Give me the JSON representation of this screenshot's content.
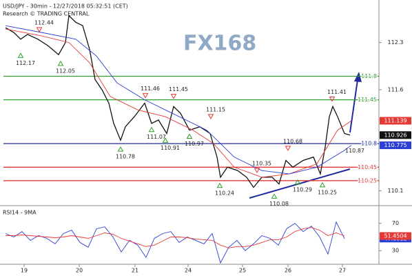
{
  "chart_data": [
    {
      "type": "line",
      "title": "USD/JPY - 30min - 12/27/2018 05:32:51 (CET)",
      "subtitle": "Research © TRADING CENTRAL",
      "watermark": "FX168",
      "xlim": [
        0,
        545
      ],
      "ylim": [
        109.9,
        112.88
      ],
      "yticks": [
        112.3,
        111.6,
        110.1
      ],
      "series": [
        {
          "color": "#111111",
          "x": [
            3,
            15,
            25,
            35,
            50,
            65,
            80,
            90,
            95,
            105,
            115,
            125,
            133,
            143,
            153,
            160,
            170,
            177,
            190,
            205,
            215,
            225,
            237,
            247,
            257,
            270,
            285,
            300,
            310,
            315,
            325,
            340,
            353,
            363,
            375,
            390,
            400,
            410,
            420,
            435,
            450,
            460,
            467,
            473,
            478,
            485,
            495,
            503
          ],
          "values": [
            112.52,
            112.45,
            112.35,
            112.42,
            112.35,
            112.25,
            112.12,
            112.3,
            112.7,
            112.6,
            112.55,
            112.2,
            111.75,
            111.6,
            111.4,
            111.1,
            110.85,
            111.05,
            111.2,
            111.4,
            111.1,
            111.15,
            110.95,
            111.35,
            111.25,
            111.0,
            111.05,
            110.95,
            110.6,
            110.3,
            110.45,
            110.4,
            110.3,
            110.15,
            110.3,
            110.3,
            110.2,
            110.55,
            110.45,
            110.55,
            110.6,
            110.35,
            110.75,
            111.2,
            111.35,
            111.2,
            110.95,
            110.926
          ]
        },
        {
          "color": "#e53935",
          "x": [
            3,
            55,
            95,
            125,
            155,
            195,
            235,
            275,
            305,
            335,
            375,
            415,
            455,
            485,
            505
          ],
          "values": [
            112.5,
            112.4,
            112.3,
            112.0,
            111.5,
            111.3,
            111.2,
            111.0,
            110.8,
            110.45,
            110.3,
            110.35,
            110.5,
            111.0,
            111.139
          ]
        },
        {
          "color": "#2b3fd6",
          "x": [
            3,
            55,
            105,
            135,
            165,
            205,
            245,
            295,
            335,
            375,
            415,
            455,
            495,
            505
          ],
          "values": [
            112.55,
            112.45,
            112.35,
            112.1,
            111.7,
            111.45,
            111.25,
            111.0,
            110.6,
            110.4,
            110.35,
            110.45,
            110.7,
            110.775
          ]
        }
      ],
      "levels": [
        {
          "value": 111.8,
          "color": "#2e9e2e"
        },
        {
          "value": 111.45,
          "color": "#2e9e2e"
        },
        {
          "value": 110.8,
          "color": "#1f2a9c"
        },
        {
          "value": 110.45,
          "color": "#e53935"
        },
        {
          "value": 110.25,
          "color": "#e53935"
        }
      ],
      "annotations": [
        {
          "x": 52,
          "value": 112.44,
          "marker": "down"
        },
        {
          "x": 25,
          "value": 112.17,
          "marker": "up"
        },
        {
          "x": 83,
          "value": 112.05,
          "marker": "up"
        },
        {
          "x": 206,
          "value": 111.46,
          "marker": "down"
        },
        {
          "x": 247,
          "value": 111.45,
          "marker": "down"
        },
        {
          "x": 215,
          "value": 111.07,
          "marker": "up"
        },
        {
          "x": 235,
          "value": 110.91,
          "marker": "up"
        },
        {
          "x": 270,
          "value": 110.97,
          "marker": "up"
        },
        {
          "x": 170,
          "value": 110.78,
          "marker": "up"
        },
        {
          "x": 301,
          "value": 111.15,
          "marker": "down"
        },
        {
          "x": 314,
          "value": 110.24,
          "marker": "up"
        },
        {
          "x": 368,
          "value": 110.35,
          "marker": "down"
        },
        {
          "x": 393,
          "value": 110.08,
          "marker": "up"
        },
        {
          "x": 427,
          "value": 110.29,
          "marker": "up"
        },
        {
          "x": 413,
          "value": 110.68,
          "marker": "down"
        },
        {
          "x": 463,
          "value": 110.25,
          "marker": "up"
        },
        {
          "x": 477,
          "value": 111.41,
          "marker": "down"
        },
        {
          "x": 503,
          "value": 110.87
        }
      ]
    },
    {
      "type": "line",
      "title": "RSI14 - 9MA",
      "xlim": [
        0,
        545
      ],
      "ylim": [
        10,
        94
      ],
      "yticks": [
        70,
        30
      ],
      "xticks": [
        {
          "value": 30,
          "label": "19"
        },
        {
          "value": 110,
          "label": "20"
        },
        {
          "value": 191,
          "label": "21"
        },
        {
          "value": 268,
          "label": "24"
        },
        {
          "value": 347,
          "label": "25"
        },
        {
          "value": 413,
          "label": "26"
        },
        {
          "value": 492,
          "label": "27"
        }
      ],
      "x": [
        3,
        15,
        27,
        39,
        51,
        63,
        75,
        87,
        99,
        111,
        123,
        135,
        147,
        159,
        171,
        183,
        195,
        207,
        219,
        231,
        243,
        255,
        267,
        279,
        291,
        303,
        315,
        327,
        339,
        351,
        363,
        375,
        387,
        399,
        411,
        423,
        435,
        447,
        459,
        471,
        483,
        495
      ],
      "series": [
        {
          "color": "#2b3fd6",
          "values": [
            55,
            50,
            58,
            45,
            52,
            48,
            40,
            55,
            60,
            42,
            35,
            62,
            65,
            50,
            28,
            45,
            38,
            20,
            48,
            55,
            58,
            42,
            50,
            45,
            40,
            55,
            12,
            35,
            45,
            30,
            40,
            52,
            48,
            38,
            62,
            70,
            58,
            66,
            50,
            25,
            72,
            47.6812
          ]
        },
        {
          "color": "#e53935",
          "values": [
            52,
            52,
            53,
            52,
            51,
            50,
            49,
            50,
            52,
            50,
            48,
            52,
            56,
            54,
            48,
            44,
            40,
            36,
            38,
            44,
            50,
            50,
            49,
            47,
            46,
            45,
            38,
            34,
            36,
            36,
            38,
            42,
            46,
            46,
            50,
            58,
            62,
            64,
            60,
            52,
            56,
            51.4504
          ]
        }
      ]
    }
  ]
}
